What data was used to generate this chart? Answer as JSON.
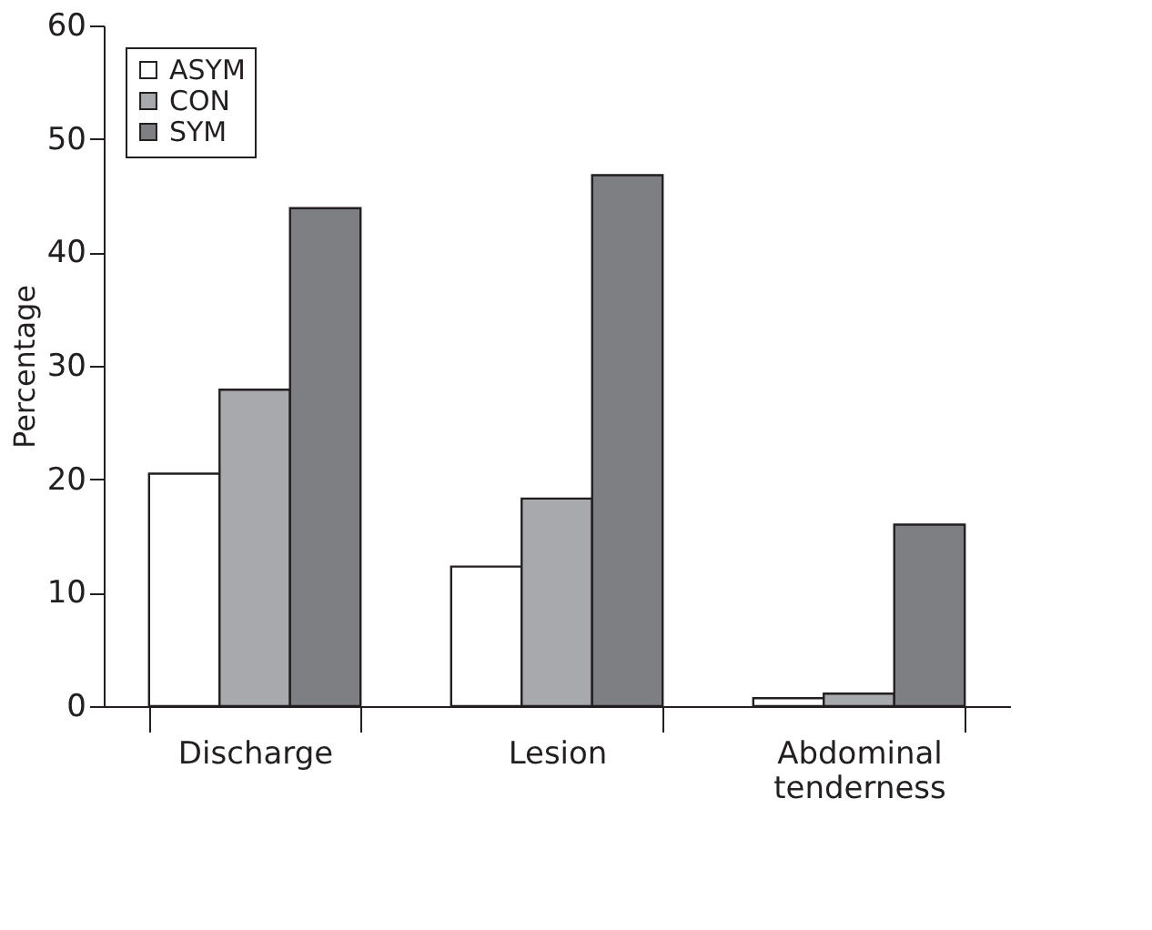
{
  "chart_data": {
    "type": "bar",
    "ylabel": "Percentage",
    "categories": [
      "Discharge",
      "Lesion",
      "Abdominal tenderness"
    ],
    "series": [
      {
        "name": "ASYM",
        "color": "#ffffff",
        "values": [
          20.5,
          12.3,
          0.7
        ]
      },
      {
        "name": "CON",
        "color": "#a8a9ad",
        "values": [
          27.9,
          18.3,
          1.1
        ]
      },
      {
        "name": "SYM",
        "color": "#7e7f83",
        "values": [
          43.9,
          46.8,
          16.0
        ]
      }
    ],
    "ylim": [
      0,
      60
    ],
    "yticks": [
      0,
      10,
      20,
      30,
      40,
      50,
      60
    ],
    "grid": false,
    "legend": "top left"
  }
}
